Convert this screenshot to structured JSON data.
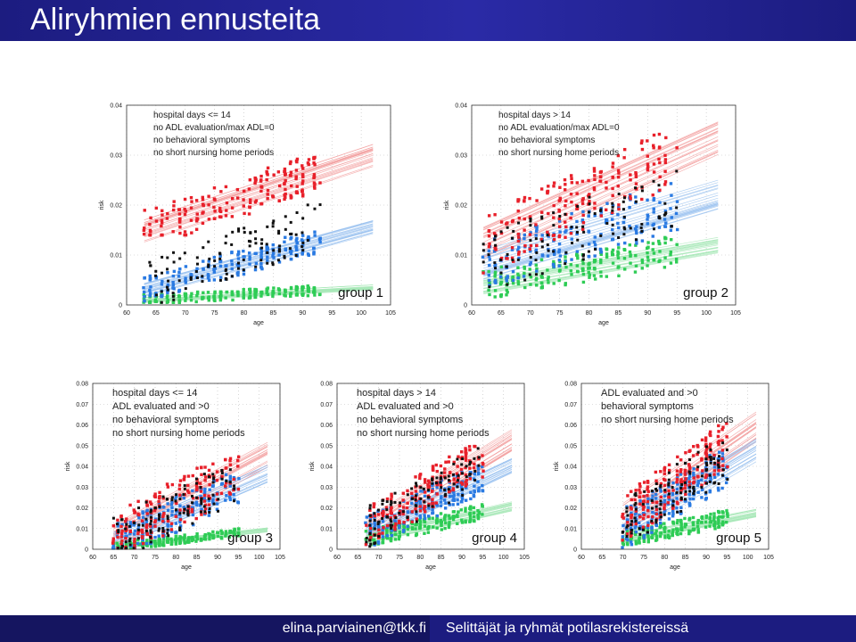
{
  "header": {
    "title": "Aliryhmien ennusteita"
  },
  "footer": {
    "email": "elina.parviainen@tkk.fi",
    "topic": "Selittäjät ja ryhmät potilasrekistereissä"
  },
  "colors": {
    "red": "#e8202a",
    "blue": "#2a7ae2",
    "green": "#2ecc55",
    "black": "#111111",
    "header": "#1c1c80"
  },
  "chart_data": [
    {
      "type": "scatter",
      "title": "group 1",
      "xlabel": "age",
      "ylabel": "risk",
      "xlim": [
        60,
        105
      ],
      "ylim": [
        0,
        0.04
      ],
      "xticks": [
        "60",
        "65",
        "70",
        "75",
        "80",
        "85",
        "90",
        "95",
        "100",
        "105"
      ],
      "yticks": [
        "0",
        "0.01",
        "0.02",
        "0.03",
        "0.04"
      ],
      "annotation": [
        "hospital days <= 14",
        "no ADL evaluation/max ADL=0",
        "no behavioral symptoms",
        "no short nursing home periods"
      ],
      "series": [
        {
          "color": "red",
          "y_start": 0.015,
          "y_end": 0.027,
          "spread": 0.004,
          "y_min": 0.014
        },
        {
          "color": "blue",
          "y_start": 0.003,
          "y_end": 0.013,
          "spread": 0.0025
        },
        {
          "color": "green",
          "y_start": 0.001,
          "y_end": 0.003,
          "spread": 0.001
        },
        {
          "color": "black",
          "y_start": 0.004,
          "y_end": 0.016,
          "spread": 0.005
        }
      ],
      "x_range": [
        63,
        93
      ]
    },
    {
      "type": "scatter",
      "title": "group 2",
      "xlabel": "age",
      "ylabel": "risk",
      "xlim": [
        60,
        105
      ],
      "ylim": [
        0,
        0.04
      ],
      "xticks": [
        "60",
        "65",
        "70",
        "75",
        "80",
        "85",
        "90",
        "95",
        "100",
        "105"
      ],
      "yticks": [
        "0",
        "0.01",
        "0.02",
        "0.03",
        "0.04"
      ],
      "annotation": [
        "hospital days > 14",
        "no ADL evaluation/max ADL=0",
        "no behavioral symptoms",
        "no short nursing home periods"
      ],
      "series": [
        {
          "color": "red",
          "y_start": 0.012,
          "y_end": 0.03,
          "spread": 0.006
        },
        {
          "color": "blue",
          "y_start": 0.008,
          "y_end": 0.02,
          "spread": 0.005
        },
        {
          "color": "green",
          "y_start": 0.004,
          "y_end": 0.011,
          "spread": 0.003
        },
        {
          "color": "black",
          "y_start": 0.008,
          "y_end": 0.022,
          "spread": 0.006
        }
      ],
      "x_range": [
        62,
        95
      ]
    },
    {
      "type": "scatter",
      "title": "group 3",
      "xlabel": "age",
      "ylabel": "risk",
      "xlim": [
        60,
        105
      ],
      "ylim": [
        0,
        0.08
      ],
      "xticks": [
        "60",
        "65",
        "70",
        "75",
        "80",
        "85",
        "90",
        "95",
        "100",
        "105"
      ],
      "yticks": [
        "0",
        "0.01",
        "0.02",
        "0.03",
        "0.04",
        "0.05",
        "0.06",
        "0.07",
        "0.08"
      ],
      "annotation": [
        "hospital days <= 14",
        "ADL evaluated and >0",
        "no behavioral symptoms",
        "no short nursing home periods"
      ],
      "series": [
        {
          "color": "red",
          "y_start": 0.005,
          "y_end": 0.038,
          "spread": 0.012
        },
        {
          "color": "blue",
          "y_start": 0.003,
          "y_end": 0.03,
          "spread": 0.009
        },
        {
          "color": "green",
          "y_start": 0.001,
          "y_end": 0.008,
          "spread": 0.002
        },
        {
          "color": "black",
          "y_start": 0.004,
          "y_end": 0.034,
          "spread": 0.011
        }
      ],
      "x_range": [
        65,
        95
      ]
    },
    {
      "type": "scatter",
      "title": "group 4",
      "xlabel": "age",
      "ylabel": "risk",
      "xlim": [
        60,
        105
      ],
      "ylim": [
        0,
        0.08
      ],
      "xticks": [
        "60",
        "65",
        "70",
        "75",
        "80",
        "85",
        "90",
        "95",
        "100",
        "105"
      ],
      "yticks": [
        "0",
        "0.01",
        "0.02",
        "0.03",
        "0.04",
        "0.05",
        "0.06",
        "0.07",
        "0.08"
      ],
      "annotation": [
        "hospital days > 14",
        "ADL evaluated and >0",
        "no behavioral symptoms",
        "no short nursing home periods"
      ],
      "series": [
        {
          "color": "red",
          "y_start": 0.01,
          "y_end": 0.045,
          "spread": 0.01
        },
        {
          "color": "blue",
          "y_start": 0.008,
          "y_end": 0.035,
          "spread": 0.008
        },
        {
          "color": "green",
          "y_start": 0.005,
          "y_end": 0.018,
          "spread": 0.004
        },
        {
          "color": "black",
          "y_start": 0.01,
          "y_end": 0.04,
          "spread": 0.01
        }
      ],
      "x_range": [
        67,
        95
      ]
    },
    {
      "type": "scatter",
      "title": "group 5",
      "xlabel": "age",
      "ylabel": "risk",
      "xlim": [
        60,
        105
      ],
      "ylim": [
        0,
        0.08
      ],
      "xticks": [
        "60",
        "65",
        "70",
        "75",
        "80",
        "85",
        "90",
        "95",
        "100",
        "105"
      ],
      "yticks": [
        "0",
        "0.01",
        "0.02",
        "0.03",
        "0.04",
        "0.05",
        "0.06",
        "0.07",
        "0.08"
      ],
      "annotation": [
        "ADL evaluated and >0",
        "behavioral symptoms",
        "no short nursing home periods"
      ],
      "series": [
        {
          "color": "red",
          "y_start": 0.015,
          "y_end": 0.05,
          "spread": 0.012
        },
        {
          "color": "blue",
          "y_start": 0.01,
          "y_end": 0.04,
          "spread": 0.01
        },
        {
          "color": "green",
          "y_start": 0.005,
          "y_end": 0.015,
          "spread": 0.004
        },
        {
          "color": "black",
          "y_start": 0.012,
          "y_end": 0.045,
          "spread": 0.012
        }
      ],
      "x_range": [
        70,
        95
      ]
    }
  ]
}
